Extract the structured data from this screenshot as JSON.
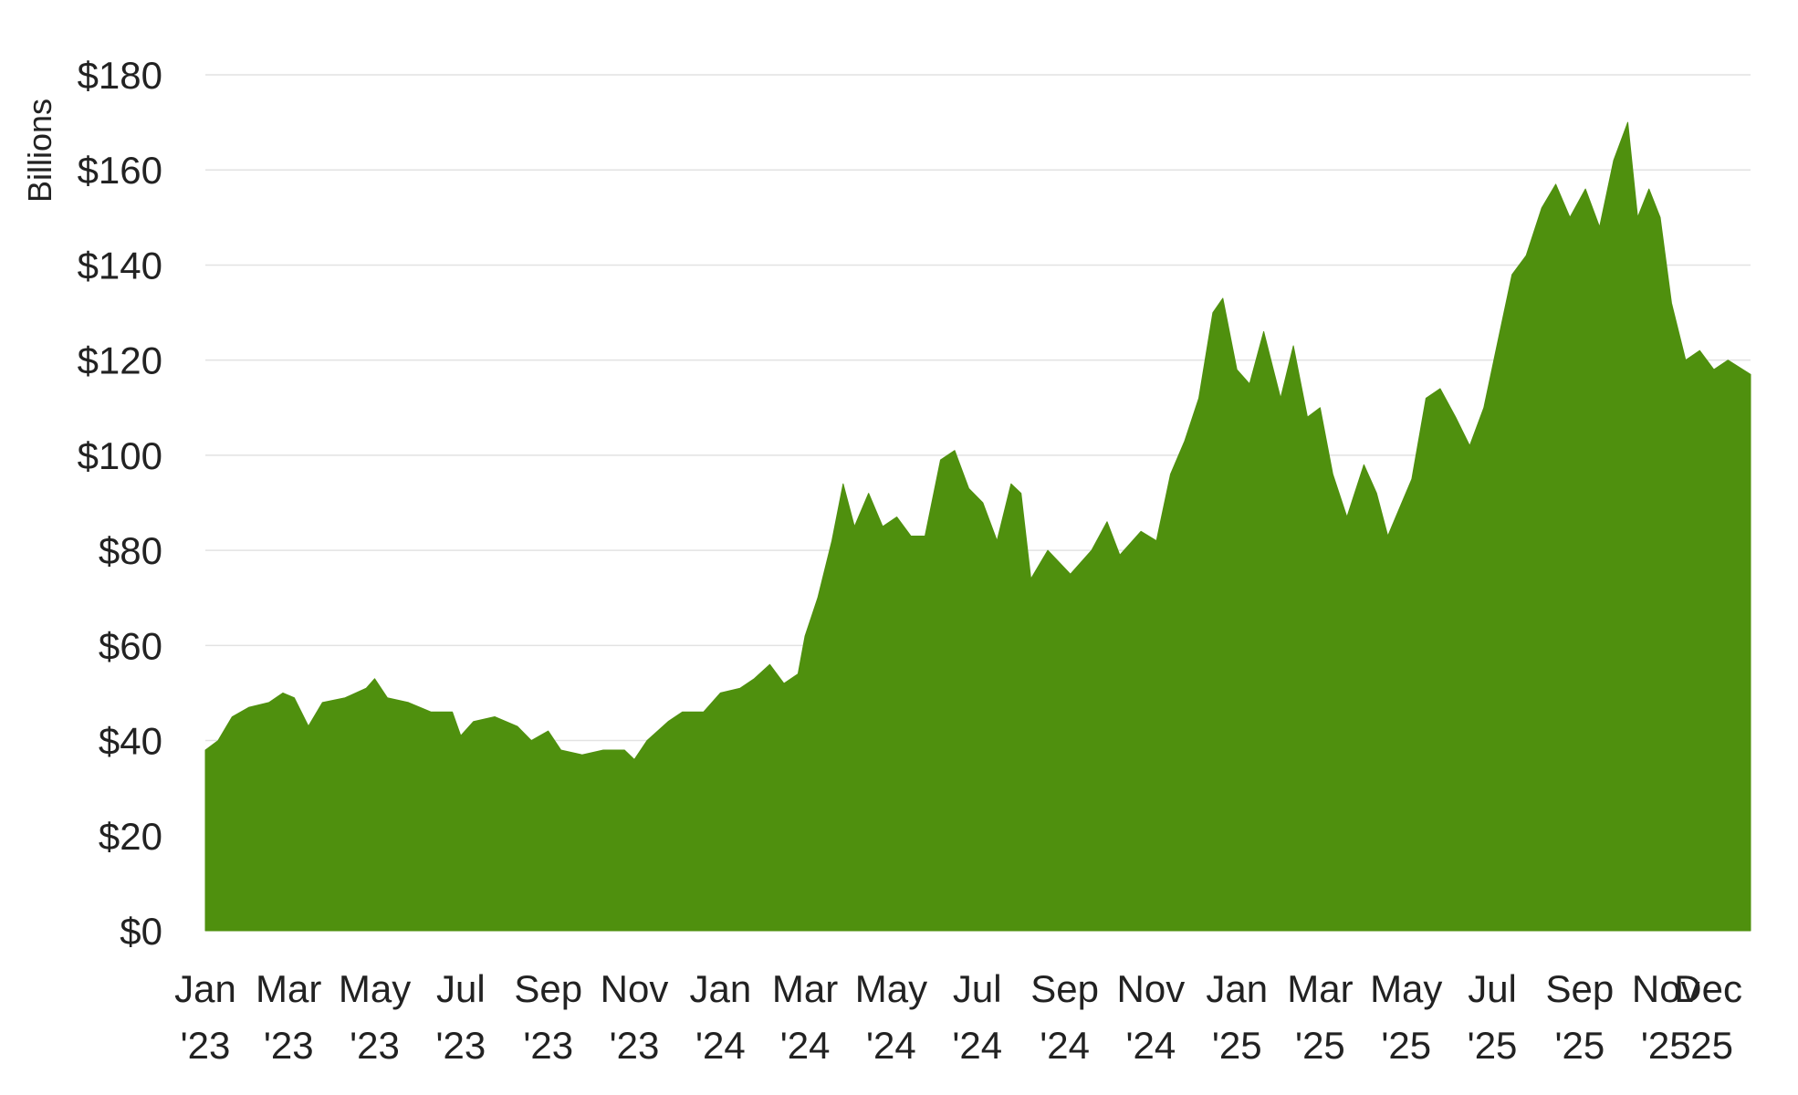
{
  "chart_data": {
    "type": "area",
    "title": "",
    "xlabel": "",
    "ylabel": "Billions",
    "grid": true,
    "legend": "none",
    "color": "#4f900e",
    "ylim": [
      0,
      180
    ],
    "y_ticks": [
      {
        "value": 0,
        "label": "$0"
      },
      {
        "value": 20,
        "label": "$20"
      },
      {
        "value": 40,
        "label": "$40"
      },
      {
        "value": 60,
        "label": "$60"
      },
      {
        "value": 80,
        "label": "$80"
      },
      {
        "value": 100,
        "label": "$100"
      },
      {
        "value": 120,
        "label": "$120"
      },
      {
        "value": 140,
        "label": "$140"
      },
      {
        "value": 160,
        "label": "$160"
      },
      {
        "value": 180,
        "label": "$180"
      }
    ],
    "x_range": [
      "2023-01-01",
      "2025-12-31"
    ],
    "x_ticks": [
      {
        "date": "2023-01-01",
        "line1": "Jan",
        "line2": "'23"
      },
      {
        "date": "2023-03-01",
        "line1": "Mar",
        "line2": "'23"
      },
      {
        "date": "2023-05-01",
        "line1": "May",
        "line2": "'23"
      },
      {
        "date": "2023-07-01",
        "line1": "Jul",
        "line2": "'23"
      },
      {
        "date": "2023-09-01",
        "line1": "Sep",
        "line2": "'23"
      },
      {
        "date": "2023-11-01",
        "line1": "Nov",
        "line2": "'23"
      },
      {
        "date": "2024-01-01",
        "line1": "Jan",
        "line2": "'24"
      },
      {
        "date": "2024-03-01",
        "line1": "Mar",
        "line2": "'24"
      },
      {
        "date": "2024-05-01",
        "line1": "May",
        "line2": "'24"
      },
      {
        "date": "2024-07-01",
        "line1": "Jul",
        "line2": "'24"
      },
      {
        "date": "2024-09-01",
        "line1": "Sep",
        "line2": "'24"
      },
      {
        "date": "2024-11-01",
        "line1": "Nov",
        "line2": "'24"
      },
      {
        "date": "2025-01-01",
        "line1": "Jan",
        "line2": "'25"
      },
      {
        "date": "2025-03-01",
        "line1": "Mar",
        "line2": "'25"
      },
      {
        "date": "2025-05-01",
        "line1": "May",
        "line2": "'25"
      },
      {
        "date": "2025-07-01",
        "line1": "Jul",
        "line2": "'25"
      },
      {
        "date": "2025-09-01",
        "line1": "Sep",
        "line2": "'25"
      },
      {
        "date": "2025-11-01",
        "line1": "Nov",
        "line2": "'25"
      },
      {
        "date": "2025-12-01",
        "line1": "Dec",
        "line2": "'25"
      }
    ],
    "series": [
      {
        "points": [
          [
            "2023-01-01",
            38
          ],
          [
            "2023-01-10",
            40
          ],
          [
            "2023-01-20",
            45
          ],
          [
            "2023-02-01",
            47
          ],
          [
            "2023-02-15",
            48
          ],
          [
            "2023-02-25",
            50
          ],
          [
            "2023-03-05",
            49
          ],
          [
            "2023-03-15",
            43
          ],
          [
            "2023-03-25",
            48
          ],
          [
            "2023-04-10",
            49
          ],
          [
            "2023-04-25",
            51
          ],
          [
            "2023-05-01",
            53
          ],
          [
            "2023-05-10",
            49
          ],
          [
            "2023-05-25",
            48
          ],
          [
            "2023-06-10",
            46
          ],
          [
            "2023-06-25",
            46
          ],
          [
            "2023-07-01",
            41
          ],
          [
            "2023-07-10",
            44
          ],
          [
            "2023-07-25",
            45
          ],
          [
            "2023-08-10",
            43
          ],
          [
            "2023-08-20",
            40
          ],
          [
            "2023-09-01",
            42
          ],
          [
            "2023-09-10",
            38
          ],
          [
            "2023-09-25",
            37
          ],
          [
            "2023-10-10",
            38
          ],
          [
            "2023-10-25",
            38
          ],
          [
            "2023-11-01",
            36
          ],
          [
            "2023-11-10",
            40
          ],
          [
            "2023-11-25",
            44
          ],
          [
            "2023-12-05",
            46
          ],
          [
            "2023-12-20",
            46
          ],
          [
            "2024-01-01",
            50
          ],
          [
            "2024-01-15",
            51
          ],
          [
            "2024-01-25",
            53
          ],
          [
            "2024-02-05",
            56
          ],
          [
            "2024-02-15",
            52
          ],
          [
            "2024-02-25",
            54
          ],
          [
            "2024-03-01",
            62
          ],
          [
            "2024-03-10",
            70
          ],
          [
            "2024-03-20",
            82
          ],
          [
            "2024-03-28",
            94
          ],
          [
            "2024-04-05",
            85
          ],
          [
            "2024-04-15",
            92
          ],
          [
            "2024-04-25",
            85
          ],
          [
            "2024-05-05",
            87
          ],
          [
            "2024-05-15",
            83
          ],
          [
            "2024-05-25",
            83
          ],
          [
            "2024-06-05",
            99
          ],
          [
            "2024-06-15",
            101
          ],
          [
            "2024-06-25",
            93
          ],
          [
            "2024-07-05",
            90
          ],
          [
            "2024-07-15",
            82
          ],
          [
            "2024-07-25",
            94
          ],
          [
            "2024-08-01",
            92
          ],
          [
            "2024-08-08",
            74
          ],
          [
            "2024-08-20",
            80
          ],
          [
            "2024-09-05",
            75
          ],
          [
            "2024-09-20",
            80
          ],
          [
            "2024-10-01",
            86
          ],
          [
            "2024-10-10",
            79
          ],
          [
            "2024-10-25",
            84
          ],
          [
            "2024-11-05",
            82
          ],
          [
            "2024-11-15",
            96
          ],
          [
            "2024-11-25",
            103
          ],
          [
            "2024-12-05",
            112
          ],
          [
            "2024-12-15",
            130
          ],
          [
            "2024-12-22",
            133
          ],
          [
            "2025-01-01",
            118
          ],
          [
            "2025-01-10",
            115
          ],
          [
            "2025-01-20",
            126
          ],
          [
            "2025-02-01",
            112
          ],
          [
            "2025-02-10",
            123
          ],
          [
            "2025-02-20",
            108
          ],
          [
            "2025-03-01",
            110
          ],
          [
            "2025-03-10",
            96
          ],
          [
            "2025-03-20",
            87
          ],
          [
            "2025-04-01",
            98
          ],
          [
            "2025-04-10",
            92
          ],
          [
            "2025-04-18",
            83
          ],
          [
            "2025-04-25",
            88
          ],
          [
            "2025-05-05",
            95
          ],
          [
            "2025-05-15",
            112
          ],
          [
            "2025-05-25",
            114
          ],
          [
            "2025-06-05",
            108
          ],
          [
            "2025-06-15",
            102
          ],
          [
            "2025-06-25",
            110
          ],
          [
            "2025-07-05",
            124
          ],
          [
            "2025-07-15",
            138
          ],
          [
            "2025-07-25",
            142
          ],
          [
            "2025-08-05",
            152
          ],
          [
            "2025-08-15",
            157
          ],
          [
            "2025-08-25",
            150
          ],
          [
            "2025-09-05",
            156
          ],
          [
            "2025-09-15",
            148
          ],
          [
            "2025-09-25",
            162
          ],
          [
            "2025-10-05",
            170
          ],
          [
            "2025-10-12",
            150
          ],
          [
            "2025-10-20",
            156
          ],
          [
            "2025-10-28",
            150
          ],
          [
            "2025-11-05",
            132
          ],
          [
            "2025-11-15",
            120
          ],
          [
            "2025-11-25",
            122
          ],
          [
            "2025-12-05",
            118
          ],
          [
            "2025-12-15",
            120
          ],
          [
            "2025-12-31",
            117
          ]
        ]
      }
    ]
  }
}
